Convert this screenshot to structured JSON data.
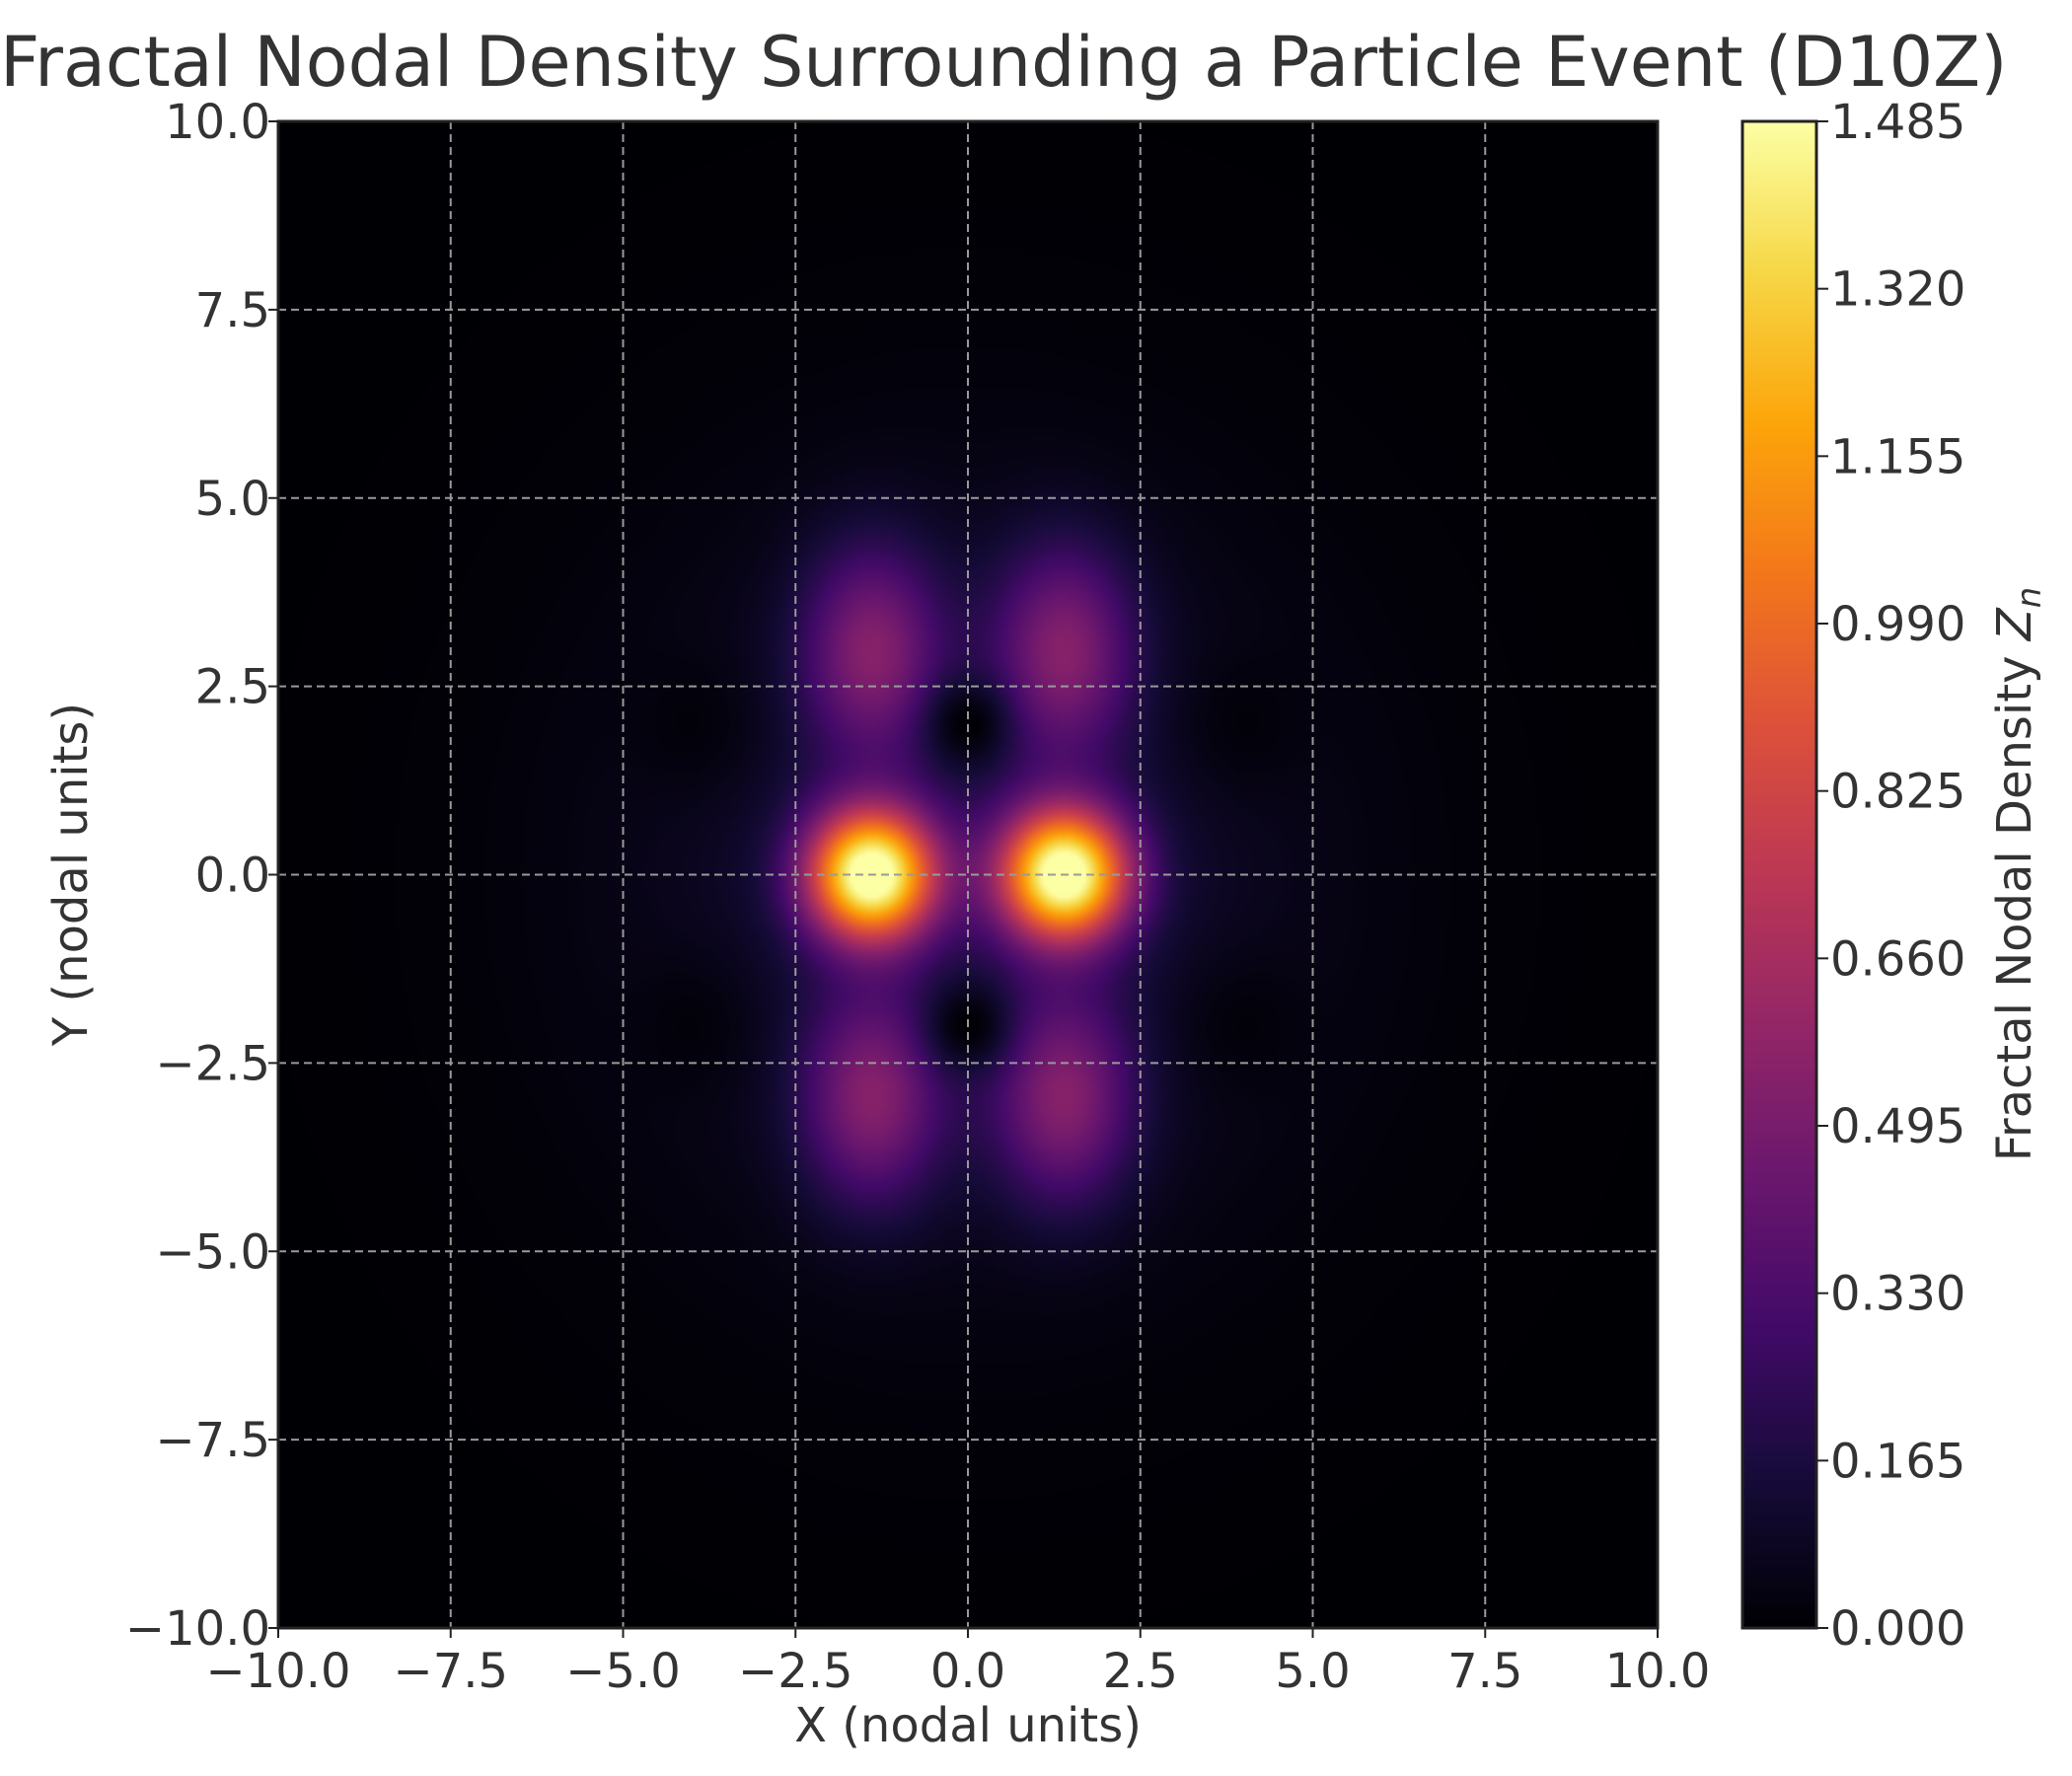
{
  "chart_data": {
    "type": "heatmap",
    "title": "Fractal Nodal Density Surrounding a Particle Event (D10Z)",
    "xlabel": "X (nodal units)",
    "ylabel": "Y (nodal units)",
    "colorbar_label": "Fractal Nodal Density Z_n",
    "colorbar_label_parts": {
      "prefix": "Fractal Nodal Density ",
      "symbol": "Z",
      "subscript": "n"
    },
    "colormap": "inferno",
    "xlim": [
      -10,
      10
    ],
    "ylim": [
      -10,
      10
    ],
    "zlim": [
      0,
      1.485
    ],
    "x_ticks": [
      -10,
      -7.5,
      -5,
      -2.5,
      0,
      2.5,
      5,
      7.5,
      10
    ],
    "x_tick_labels": [
      "−10.0",
      "−7.5",
      "−5.0",
      "−2.5",
      "0.0",
      "2.5",
      "5.0",
      "7.5",
      "10.0"
    ],
    "y_ticks": [
      10,
      7.5,
      5,
      2.5,
      0,
      -2.5,
      -5,
      -7.5,
      -10
    ],
    "y_tick_labels": [
      "10.0",
      "7.5",
      "5.0",
      "2.5",
      "0.0",
      "−2.5",
      "−5.0",
      "−7.5",
      "−10.0"
    ],
    "colorbar_ticks": [
      0,
      0.165,
      0.33,
      0.495,
      0.66,
      0.825,
      0.99,
      1.155,
      1.32,
      1.485
    ],
    "colorbar_tick_labels": [
      "0.000",
      "0.165",
      "0.330",
      "0.495",
      "0.660",
      "0.825",
      "0.990",
      "1.155",
      "1.320",
      "1.485"
    ],
    "grid": true,
    "features": [
      {
        "kind": "peak",
        "x": -1.4,
        "y": 0.0,
        "z": 1.485
      },
      {
        "kind": "peak",
        "x": 1.4,
        "y": 0.0,
        "z": 1.485
      },
      {
        "kind": "lobe",
        "x": -1.4,
        "y": 3.0,
        "z": 0.45
      },
      {
        "kind": "lobe",
        "x": 1.4,
        "y": 3.0,
        "z": 0.45
      },
      {
        "kind": "lobe",
        "x": -1.4,
        "y": -3.0,
        "z": 0.45
      },
      {
        "kind": "lobe",
        "x": 1.4,
        "y": -3.0,
        "z": 0.45
      },
      {
        "kind": "node",
        "x": 0.0,
        "y": 2.0,
        "z": 0.0
      },
      {
        "kind": "node",
        "x": 0.0,
        "y": -2.0,
        "z": 0.0
      }
    ]
  }
}
